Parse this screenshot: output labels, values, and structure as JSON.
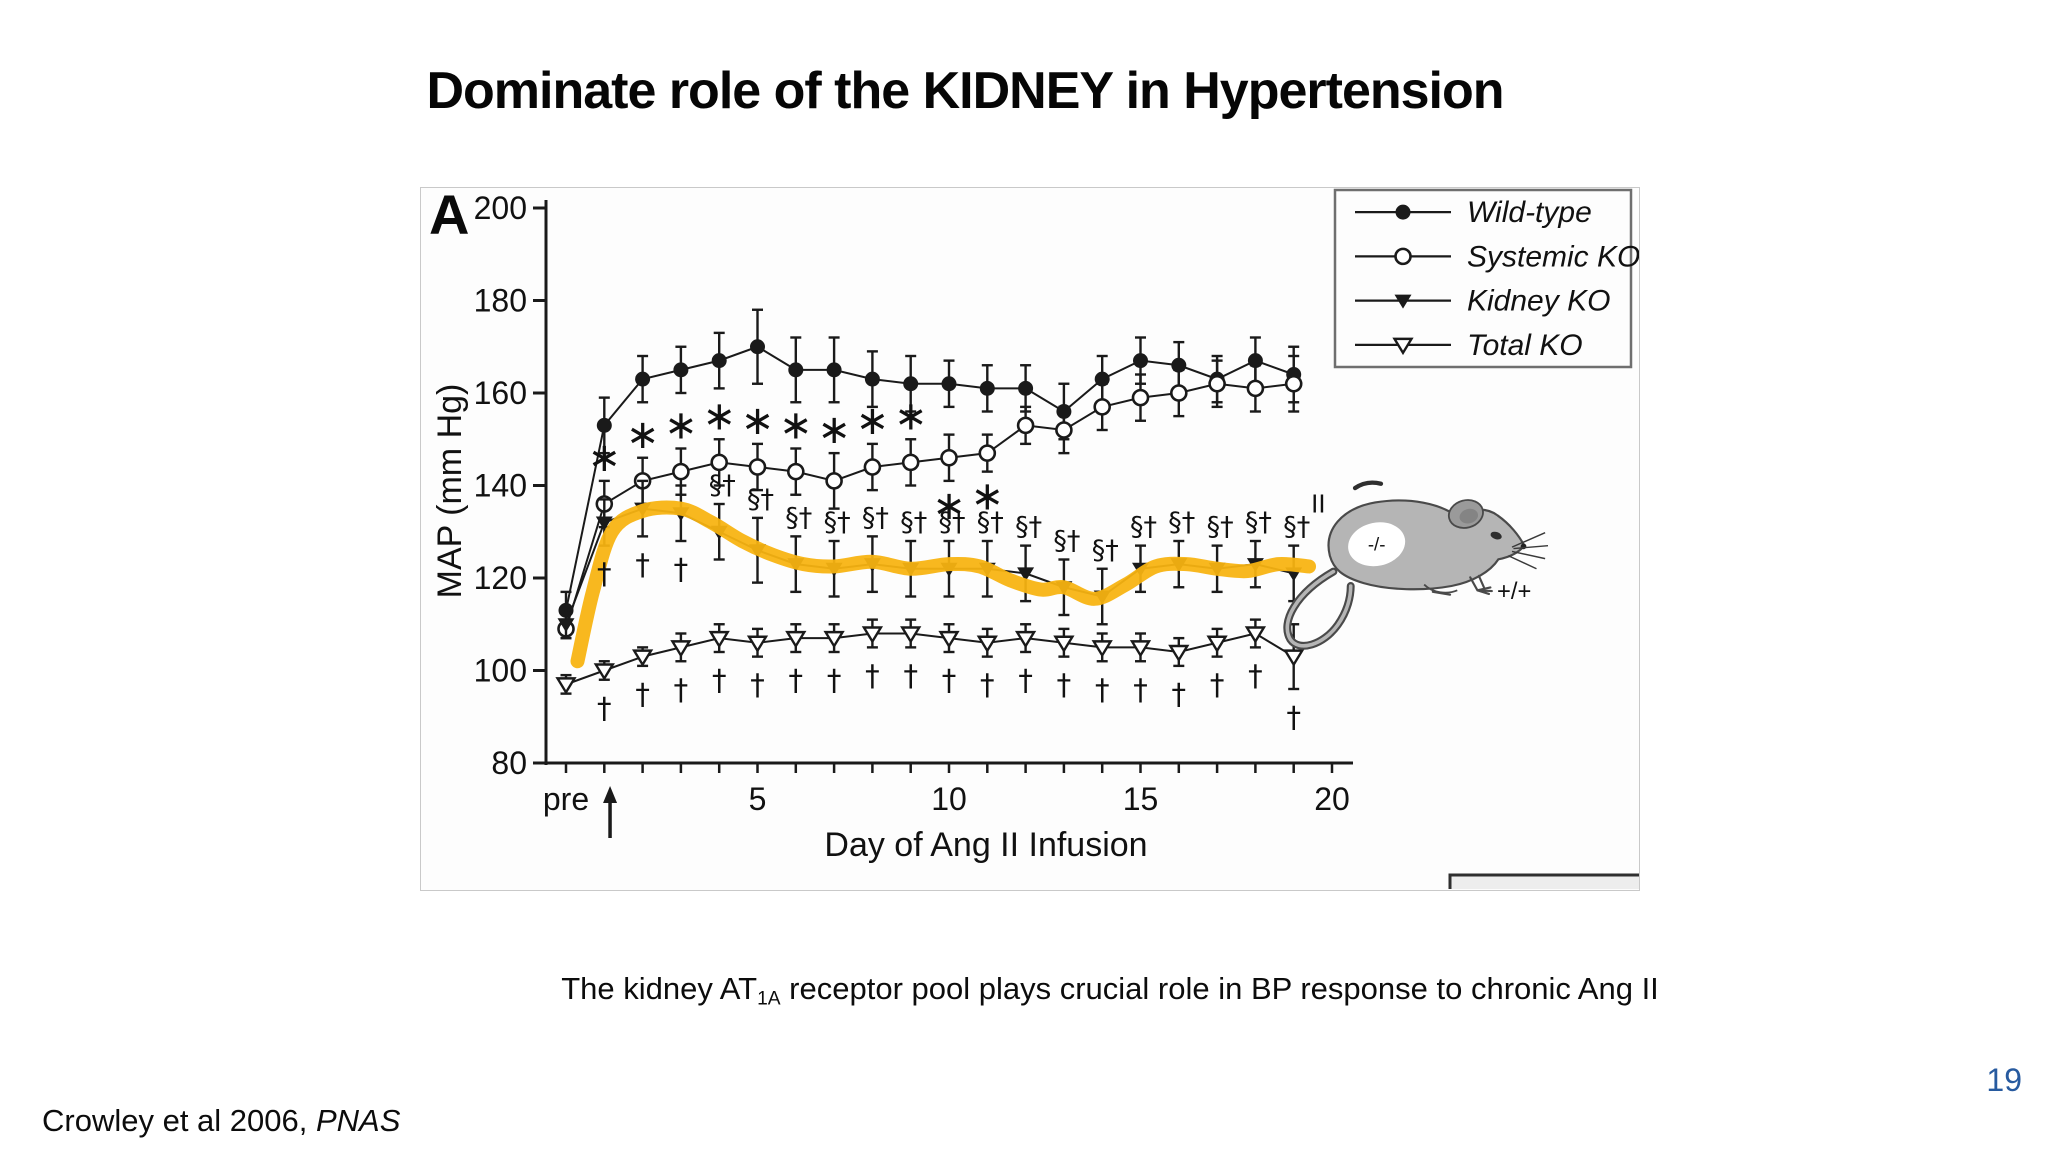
{
  "slide": {
    "title": "Dominate role of the KIDNEY in Hypertension",
    "caption": {
      "pre": "The kidney AT",
      "sub": "1A",
      "post": " receptor pool plays crucial role in BP response to chronic Ang II"
    },
    "citation": {
      "text": "Crowley et al 2006, ",
      "journal": "PNAS"
    },
    "page_number": "19",
    "page_number_color": "#275A9F"
  },
  "figure": {
    "panel_label": "A",
    "mouse": {
      "side_label": "II",
      "patch_label": "-/-",
      "genotype_label": "+/+"
    }
  },
  "chart_data": {
    "type": "line",
    "title": "",
    "xlabel": "Day of Ang II Infusion",
    "ylabel": "MAP (mm Hg)",
    "ylim": [
      80,
      200
    ],
    "yticks": [
      80,
      100,
      120,
      140,
      160,
      180,
      200
    ],
    "xticks": [
      {
        "day": 0,
        "label": "pre"
      },
      {
        "day": 5,
        "label": "5"
      },
      {
        "day": 10,
        "label": "10"
      },
      {
        "day": 15,
        "label": "15"
      },
      {
        "day": 20,
        "label": "20"
      }
    ],
    "minor_tick_days": [
      0,
      1,
      2,
      3,
      4,
      5,
      6,
      7,
      8,
      9,
      10,
      11,
      12,
      13,
      14,
      15,
      16,
      17,
      18,
      19,
      20
    ],
    "days": [
      "pre",
      1,
      2,
      3,
      4,
      5,
      6,
      7,
      8,
      9,
      10,
      11,
      12,
      13,
      14,
      15,
      16,
      17,
      18,
      19
    ],
    "grid": false,
    "legend_position": "top-right",
    "ink_color": "#1a1a1a",
    "series": [
      {
        "name": "Wild-type",
        "marker": "filled-circle",
        "values": [
          113,
          153,
          163,
          165,
          167,
          170,
          165,
          165,
          163,
          162,
          162,
          161,
          161,
          156,
          163,
          167,
          166,
          163,
          167,
          164
        ],
        "err": [
          4,
          6,
          5,
          5,
          6,
          8,
          7,
          7,
          6,
          6,
          5,
          5,
          5,
          6,
          5,
          5,
          5,
          5,
          5,
          6
        ]
      },
      {
        "name": "Systemic KO",
        "marker": "open-circle",
        "values": [
          109,
          136,
          141,
          143,
          145,
          144,
          143,
          141,
          144,
          145,
          146,
          147,
          153,
          152,
          157,
          159,
          160,
          162,
          161,
          162
        ],
        "err": [
          2,
          5,
          5,
          5,
          5,
          5,
          5,
          6,
          5,
          5,
          5,
          4,
          4,
          5,
          5,
          5,
          5,
          5,
          5,
          6
        ]
      },
      {
        "name": "Kidney KO",
        "marker": "filled-triangle-down",
        "values": [
          110,
          132,
          135,
          134,
          130,
          126,
          123,
          122,
          123,
          122,
          122,
          122,
          121,
          118,
          116,
          122,
          123,
          122,
          123,
          121
        ],
        "err": [
          3,
          5,
          6,
          6,
          6,
          7,
          6,
          6,
          6,
          6,
          6,
          6,
          6,
          6,
          6,
          5,
          5,
          5,
          5,
          6
        ]
      },
      {
        "name": "Total KO",
        "marker": "open-triangle-down",
        "values": [
          97,
          100,
          103,
          105,
          107,
          106,
          107,
          107,
          108,
          108,
          107,
          106,
          107,
          106,
          105,
          105,
          104,
          106,
          108,
          103
        ],
        "err": [
          2,
          2,
          2,
          3,
          3,
          3,
          3,
          3,
          3,
          3,
          3,
          3,
          3,
          3,
          3,
          3,
          3,
          3,
          3,
          7
        ]
      }
    ],
    "annotations": {
      "star_glyph": "∗",
      "dagger_glyph": "†",
      "section_dagger_glyph": "§†",
      "star_above_systemic_days": [
        1,
        2,
        3,
        4,
        5,
        6,
        7,
        8,
        9
      ],
      "star_below_systemic_days": [
        10,
        11
      ],
      "dagger_below_kidney_days": [
        1,
        2,
        3
      ],
      "section_dagger_above_kidney_days": [
        4,
        5,
        6,
        7,
        8,
        9,
        10,
        11,
        12,
        13,
        14,
        15,
        16,
        17,
        18,
        19
      ],
      "dagger_below_total_days": [
        1,
        2,
        3,
        4,
        5,
        6,
        7,
        8,
        9,
        10,
        11,
        12,
        13,
        14,
        15,
        16,
        17,
        18,
        19
      ],
      "infusion_arrow_day": 1.15
    },
    "highlight": {
      "color": "#F8B411",
      "points": [
        [
          0.3,
          102
        ],
        [
          0.7,
          117
        ],
        [
          1.2,
          130
        ],
        [
          2,
          134.5
        ],
        [
          3,
          135
        ],
        [
          3.8,
          132
        ],
        [
          4.6,
          128
        ],
        [
          5.4,
          125
        ],
        [
          6.2,
          123
        ],
        [
          7,
          122.5
        ],
        [
          8,
          123.5
        ],
        [
          9,
          122
        ],
        [
          10,
          123
        ],
        [
          10.8,
          122.5
        ],
        [
          11.6,
          119.5
        ],
        [
          12.4,
          117.5
        ],
        [
          13,
          118
        ],
        [
          13.8,
          115.5
        ],
        [
          14.6,
          118.5
        ],
        [
          15.4,
          122.5
        ],
        [
          16.2,
          123
        ],
        [
          17,
          122
        ],
        [
          17.8,
          121.5
        ],
        [
          18.6,
          123
        ],
        [
          19.4,
          122.5
        ]
      ]
    }
  }
}
